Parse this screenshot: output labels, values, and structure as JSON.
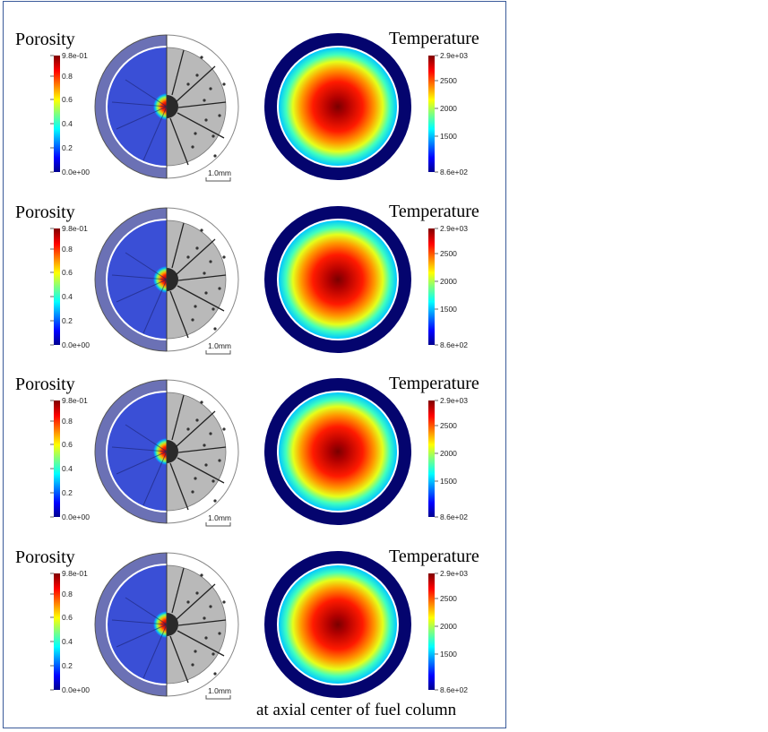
{
  "panels": [
    {
      "porosity": {
        "title": "Porosity",
        "ticks": [
          "9.8e-01",
          "0.8",
          "0.6",
          "0.4",
          "0.2",
          "0.0e+00"
        ]
      },
      "temperature": {
        "title": "Temperature",
        "ticks": [
          "2.9e+03",
          "2500",
          "2000",
          "1500",
          "8.6e+02"
        ]
      },
      "scale_bar": "1.0mm"
    },
    {
      "porosity": {
        "title": "Porosity",
        "ticks": [
          "9.8e-01",
          "0.8",
          "0.6",
          "0.4",
          "0.2",
          "0.0e+00"
        ]
      },
      "temperature": {
        "title": "Temperature",
        "ticks": [
          "2.9e+03",
          "2500",
          "2000",
          "1500",
          "8.6e+02"
        ]
      },
      "scale_bar": "1.0mm"
    },
    {
      "porosity": {
        "title": "Porosity",
        "ticks": [
          "9.8e-01",
          "0.8",
          "0.6",
          "0.4",
          "0.2",
          "0.0e+00"
        ]
      },
      "temperature": {
        "title": "Temperature",
        "ticks": [
          "2.9e+03",
          "2500",
          "2000",
          "1500",
          "8.6e+02"
        ]
      },
      "scale_bar": "1.0mm"
    },
    {
      "porosity": {
        "title": "Porosity",
        "ticks": [
          "9.8e-01",
          "0.8",
          "0.6",
          "0.4",
          "0.2",
          "0.0e+00"
        ]
      },
      "temperature": {
        "title": "Temperature",
        "ticks": [
          "2.9e+03",
          "2500",
          "2000",
          "1500",
          "8.6e+02"
        ]
      },
      "scale_bar": "1.0mm"
    }
  ],
  "footnote": "at axial center of fuel column",
  "colors": {
    "frame": "#3b5b9a",
    "cladding_porosity": "#6b71b5",
    "cladding_temperature": "#04046e",
    "porosity_fill": "#3a4fd6",
    "micrograph_fill": "#b9b9b9"
  }
}
